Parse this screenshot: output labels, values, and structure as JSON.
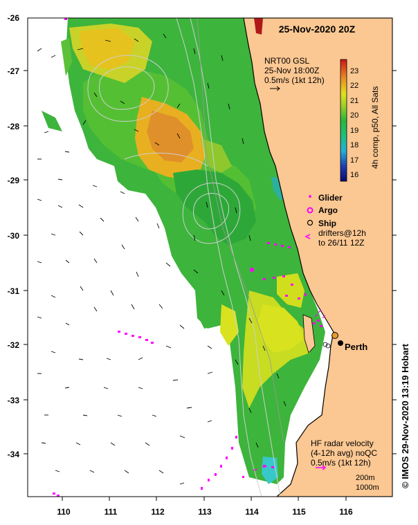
{
  "title": "25-Nov-2020 20Z",
  "model": {
    "label": "NRT00 GSL",
    "time": "25-Nov 18:00Z",
    "scale": "0.5m/s (1kt 12h)"
  },
  "colorbar": {
    "label": "4h comp, p50, All Sats",
    "ticks": [
      "23",
      "22",
      "21",
      "20",
      "19",
      "18",
      "17",
      "16"
    ],
    "min": 15.5,
    "max": 23.5
  },
  "legend": {
    "glider": "Glider",
    "argo": "Argo",
    "ship": "Ship",
    "drifters_line1": "drifters@12h",
    "drifters_line2": "to 26/11 12Z"
  },
  "places": {
    "perth": "Perth"
  },
  "hf_radar": {
    "line1": "HF radar velocity",
    "line2": "(4-12h avg) noQC",
    "line3": "0.5m/s (1kt 12h)"
  },
  "isobaths": {
    "a": "200m",
    "b": "1000m"
  },
  "axes": {
    "x_ticks": [
      "110",
      "111",
      "112",
      "113",
      "114",
      "115",
      "116"
    ],
    "y_ticks": [
      "-26",
      "-27",
      "-28",
      "-29",
      "-30",
      "-31",
      "-32",
      "-33",
      "-34"
    ],
    "lon_range": [
      109.2,
      116.9
    ],
    "lat_range": [
      -26.0,
      -34.8
    ]
  },
  "credit": "© IMOS 29-Nov-2020 13:19 Hobart",
  "colors": {
    "land": "#fbc792",
    "warm": "#e0902a",
    "yellow": "#d8e21e",
    "green": "#3db43c",
    "cyan": "#38c8c8",
    "glider": "#ff00ff",
    "perth_marker": "#e89a30"
  }
}
